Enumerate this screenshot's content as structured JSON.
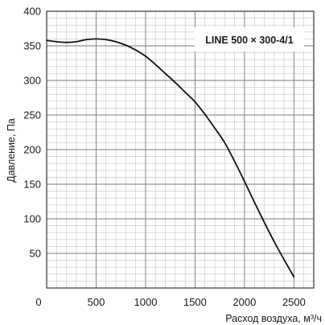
{
  "chart_data": {
    "type": "line",
    "title": "",
    "xlabel": "Расход воздуха, м³/ч",
    "ylabel": "Давление, Па",
    "xlim": [
      0,
      2700
    ],
    "ylim": [
      0,
      400
    ],
    "xticks": [
      0,
      500,
      1000,
      1500,
      2000,
      2500
    ],
    "yticks": [
      50,
      100,
      150,
      200,
      250,
      300,
      350,
      400
    ],
    "y_origin_label": "0",
    "grid": true,
    "legend_position": "top-right",
    "series": [
      {
        "name": "LINE 500 × 300-4/1",
        "x": [
          0,
          100,
          200,
          300,
          400,
          500,
          600,
          700,
          800,
          900,
          1000,
          1100,
          1200,
          1300,
          1400,
          1500,
          1600,
          1700,
          1800,
          1900,
          2000,
          2100,
          2200,
          2300,
          2400,
          2500
        ],
        "y": [
          358,
          356,
          355,
          356,
          359,
          360,
          359,
          356,
          351,
          344,
          335,
          323,
          310,
          297,
          283,
          269,
          251,
          231,
          210,
          183,
          154,
          124,
          95,
          67,
          41,
          16
        ]
      }
    ]
  },
  "colors": {
    "curve": "#111111",
    "grid_minor": "#c4c4c4",
    "grid_major": "#7a7a7a",
    "frame": "#333333",
    "legend_bg": "#ffffff"
  }
}
